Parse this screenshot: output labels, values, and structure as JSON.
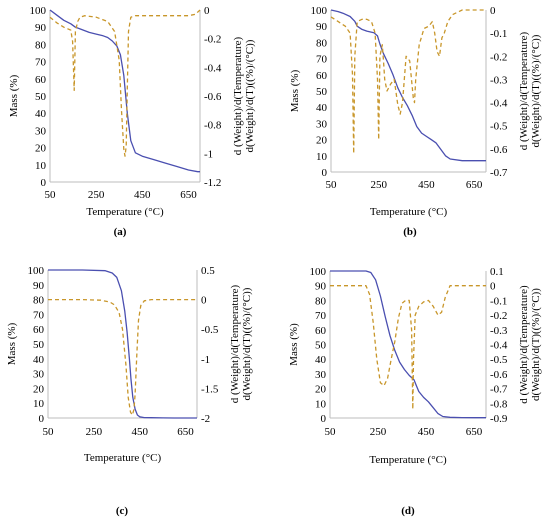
{
  "colors": {
    "mass": "#4a4fb0",
    "deriv": "#c8962a",
    "axis": "#bdbdbd",
    "text": "#000000"
  },
  "chart_data": [
    {
      "panel_label": "(a)",
      "type": "line",
      "xlabel": "Temperature (°C)",
      "ylabel": "Mass (%)",
      "y2label_1": "d (Weight)/d(Temperature)",
      "y2label_2": "d(Weight)/d(T)((%)/(°C))",
      "xlim": [
        50,
        700
      ],
      "xticks": [
        "50",
        "250",
        "450",
        "650"
      ],
      "ylim": [
        0,
        100
      ],
      "yticks": [
        "0",
        "10",
        "20",
        "30",
        "40",
        "50",
        "60",
        "70",
        "80",
        "90",
        "100"
      ],
      "y2lim": [
        -1.2,
        0
      ],
      "y2ticks": [
        "-1.2",
        "-1",
        "-0.8",
        "-0.6",
        "-0.4",
        "-0.2",
        "0"
      ],
      "series": [
        {
          "axis": "left",
          "style": "solid",
          "x": [
            50,
            80,
            110,
            140,
            160,
            180,
            200,
            220,
            250,
            280,
            300,
            320,
            340,
            355,
            370,
            385,
            400,
            420,
            450,
            500,
            550,
            600,
            650,
            690,
            700
          ],
          "y": [
            100,
            97,
            94,
            92,
            90,
            89,
            88,
            87,
            86,
            85,
            84,
            82,
            79,
            74,
            62,
            40,
            24,
            17,
            15,
            13,
            11,
            9,
            7,
            6,
            6
          ]
        },
        {
          "axis": "right",
          "style": "dashed",
          "x": [
            50,
            80,
            110,
            140,
            148,
            155,
            160,
            170,
            180,
            200,
            250,
            300,
            330,
            350,
            360,
            370,
            375,
            380,
            385,
            390,
            400,
            420,
            450,
            550,
            650,
            680,
            700
          ],
          "y": [
            -0.05,
            -0.09,
            -0.12,
            -0.14,
            -0.22,
            -0.56,
            -0.15,
            -0.08,
            -0.05,
            -0.04,
            -0.05,
            -0.08,
            -0.15,
            -0.35,
            -0.7,
            -0.97,
            -1.02,
            -0.95,
            -0.55,
            -0.15,
            -0.05,
            -0.04,
            -0.04,
            -0.04,
            -0.04,
            -0.03,
            0
          ]
        }
      ]
    },
    {
      "panel_label": "(b)",
      "type": "line",
      "xlabel": "Temperature (°C)",
      "ylabel": "Mass (%)",
      "y2label_1": "d (Weight)/d(Temperature)",
      "y2label_2": "d(Weight)/d(T)((%)/(°C))",
      "xlim": [
        50,
        700
      ],
      "xticks": [
        "50",
        "250",
        "450",
        "650"
      ],
      "ylim": [
        0,
        100
      ],
      "yticks": [
        "0",
        "10",
        "20",
        "30",
        "40",
        "50",
        "60",
        "70",
        "80",
        "90",
        "100"
      ],
      "y2lim": [
        -0.7,
        0
      ],
      "y2ticks": [
        "-0.7",
        "-0.6",
        "-0.5",
        "-0.4",
        "-0.3",
        "-0.2",
        "-0.1",
        "0"
      ],
      "series": [
        {
          "axis": "left",
          "style": "solid",
          "x": [
            50,
            80,
            100,
            130,
            150,
            160,
            180,
            200,
            230,
            245,
            255,
            270,
            290,
            310,
            330,
            350,
            370,
            390,
            410,
            430,
            450,
            470,
            490,
            510,
            530,
            550,
            600,
            650,
            700
          ],
          "y": [
            100,
            99,
            98,
            96,
            93,
            90,
            88,
            87,
            86,
            84,
            79,
            73,
            67,
            60,
            52,
            46,
            41,
            35,
            28,
            24,
            22,
            20,
            18,
            14,
            10,
            8,
            7,
            7,
            7
          ]
        },
        {
          "axis": "right",
          "style": "dashed",
          "x": [
            50,
            80,
            110,
            130,
            140,
            145,
            150,
            160,
            180,
            200,
            220,
            235,
            245,
            250,
            255,
            265,
            270,
            275,
            285,
            300,
            315,
            330,
            340,
            350,
            365,
            380,
            395,
            400,
            405,
            420,
            440,
            460,
            475,
            485,
            495,
            505,
            515,
            525,
            540,
            560,
            600,
            650,
            700
          ],
          "y": [
            -0.03,
            -0.05,
            -0.07,
            -0.1,
            -0.28,
            -0.62,
            -0.2,
            -0.05,
            -0.04,
            -0.04,
            -0.05,
            -0.1,
            -0.3,
            -0.56,
            -0.2,
            -0.15,
            -0.22,
            -0.3,
            -0.35,
            -0.32,
            -0.3,
            -0.41,
            -0.45,
            -0.4,
            -0.2,
            -0.22,
            -0.38,
            -0.4,
            -0.3,
            -0.15,
            -0.08,
            -0.07,
            -0.05,
            -0.1,
            -0.18,
            -0.2,
            -0.12,
            -0.1,
            -0.05,
            -0.02,
            0,
            0,
            0
          ]
        }
      ]
    },
    {
      "panel_label": "(c)",
      "type": "line",
      "xlabel": "Temperature (°C)",
      "ylabel": "Mass (%)",
      "y2label_1": "d (Weight)/d(Temperature)",
      "y2label_2": "d(Weight)/d(T)((%)/(°C))",
      "xlim": [
        50,
        700
      ],
      "xticks": [
        "50",
        "250",
        "450",
        "650"
      ],
      "ylim": [
        0,
        100
      ],
      "yticks": [
        "0",
        "10",
        "20",
        "30",
        "40",
        "50",
        "60",
        "70",
        "80",
        "90",
        "100"
      ],
      "y2lim": [
        -2,
        0.5
      ],
      "y2ticks": [
        "-2",
        "-1.5",
        "-1",
        "-0.5",
        "0",
        "0.5"
      ],
      "series": [
        {
          "axis": "left",
          "style": "solid",
          "x": [
            50,
            100,
            200,
            300,
            330,
            350,
            370,
            385,
            395,
            405,
            412,
            420,
            430,
            440,
            450,
            470,
            500,
            550,
            600,
            650,
            700
          ],
          "y": [
            100,
            100,
            100,
            99.5,
            98,
            95,
            86,
            72,
            58,
            40,
            26,
            14,
            6,
            2,
            0.8,
            0.3,
            0.2,
            0.1,
            0,
            0,
            0
          ]
        },
        {
          "axis": "right",
          "style": "dashed",
          "x": [
            50,
            100,
            200,
            280,
            320,
            340,
            360,
            375,
            390,
            400,
            410,
            418,
            425,
            430,
            438,
            445,
            455,
            470,
            500,
            550,
            600,
            650,
            700
          ],
          "y": [
            0,
            0,
            0,
            -0.01,
            -0.04,
            -0.09,
            -0.22,
            -0.5,
            -1.1,
            -1.65,
            -1.9,
            -1.95,
            -1.85,
            -1.6,
            -0.9,
            -0.35,
            -0.1,
            -0.02,
            0,
            0,
            0,
            0,
            0
          ]
        }
      ]
    },
    {
      "panel_label": "(d)",
      "type": "line",
      "xlabel": "Temperature (°C)",
      "ylabel": "Mass (%)",
      "y2label_1": "d (Weight)/d(Temperature)",
      "y2label_2": "d(Weight)/d(T)((%)/(°C))",
      "xlim": [
        50,
        700
      ],
      "xticks": [
        "50",
        "250",
        "450",
        "650"
      ],
      "ylim": [
        0,
        100
      ],
      "yticks": [
        "0",
        "10",
        "20",
        "30",
        "40",
        "50",
        "60",
        "70",
        "80",
        "90",
        "100"
      ],
      "y2lim": [
        -0.9,
        0.1
      ],
      "y2ticks": [
        "-0.9",
        "-0.8",
        "-0.7",
        "-0.6",
        "-0.5",
        "-0.4",
        "-0.3",
        "-0.2",
        "-0.1",
        "0",
        "0.1"
      ],
      "series": [
        {
          "axis": "left",
          "style": "solid",
          "x": [
            50,
            150,
            200,
            220,
            240,
            260,
            280,
            300,
            320,
            340,
            360,
            380,
            400,
            410,
            420,
            440,
            460,
            480,
            500,
            520,
            550,
            600,
            650,
            700
          ],
          "y": [
            100,
            100,
            100,
            99,
            94,
            83,
            69,
            56,
            46,
            38,
            33,
            29,
            26,
            22,
            18,
            14,
            11,
            7,
            3,
            1,
            0.5,
            0.3,
            0.2,
            0.2
          ]
        },
        {
          "axis": "right",
          "style": "dashed",
          "x": [
            50,
            100,
            150,
            200,
            215,
            230,
            245,
            260,
            275,
            290,
            305,
            320,
            335,
            350,
            365,
            380,
            390,
            395,
            398,
            405,
            420,
            440,
            460,
            480,
            500,
            515,
            530,
            550,
            600,
            650,
            700
          ],
          "y": [
            0,
            0,
            0,
            0,
            -0.06,
            -0.25,
            -0.5,
            -0.66,
            -0.68,
            -0.63,
            -0.5,
            -0.38,
            -0.22,
            -0.12,
            -0.1,
            -0.1,
            -0.3,
            -0.84,
            -0.5,
            -0.2,
            -0.14,
            -0.11,
            -0.1,
            -0.14,
            -0.2,
            -0.18,
            -0.08,
            0,
            0,
            0,
            0
          ]
        }
      ]
    }
  ]
}
